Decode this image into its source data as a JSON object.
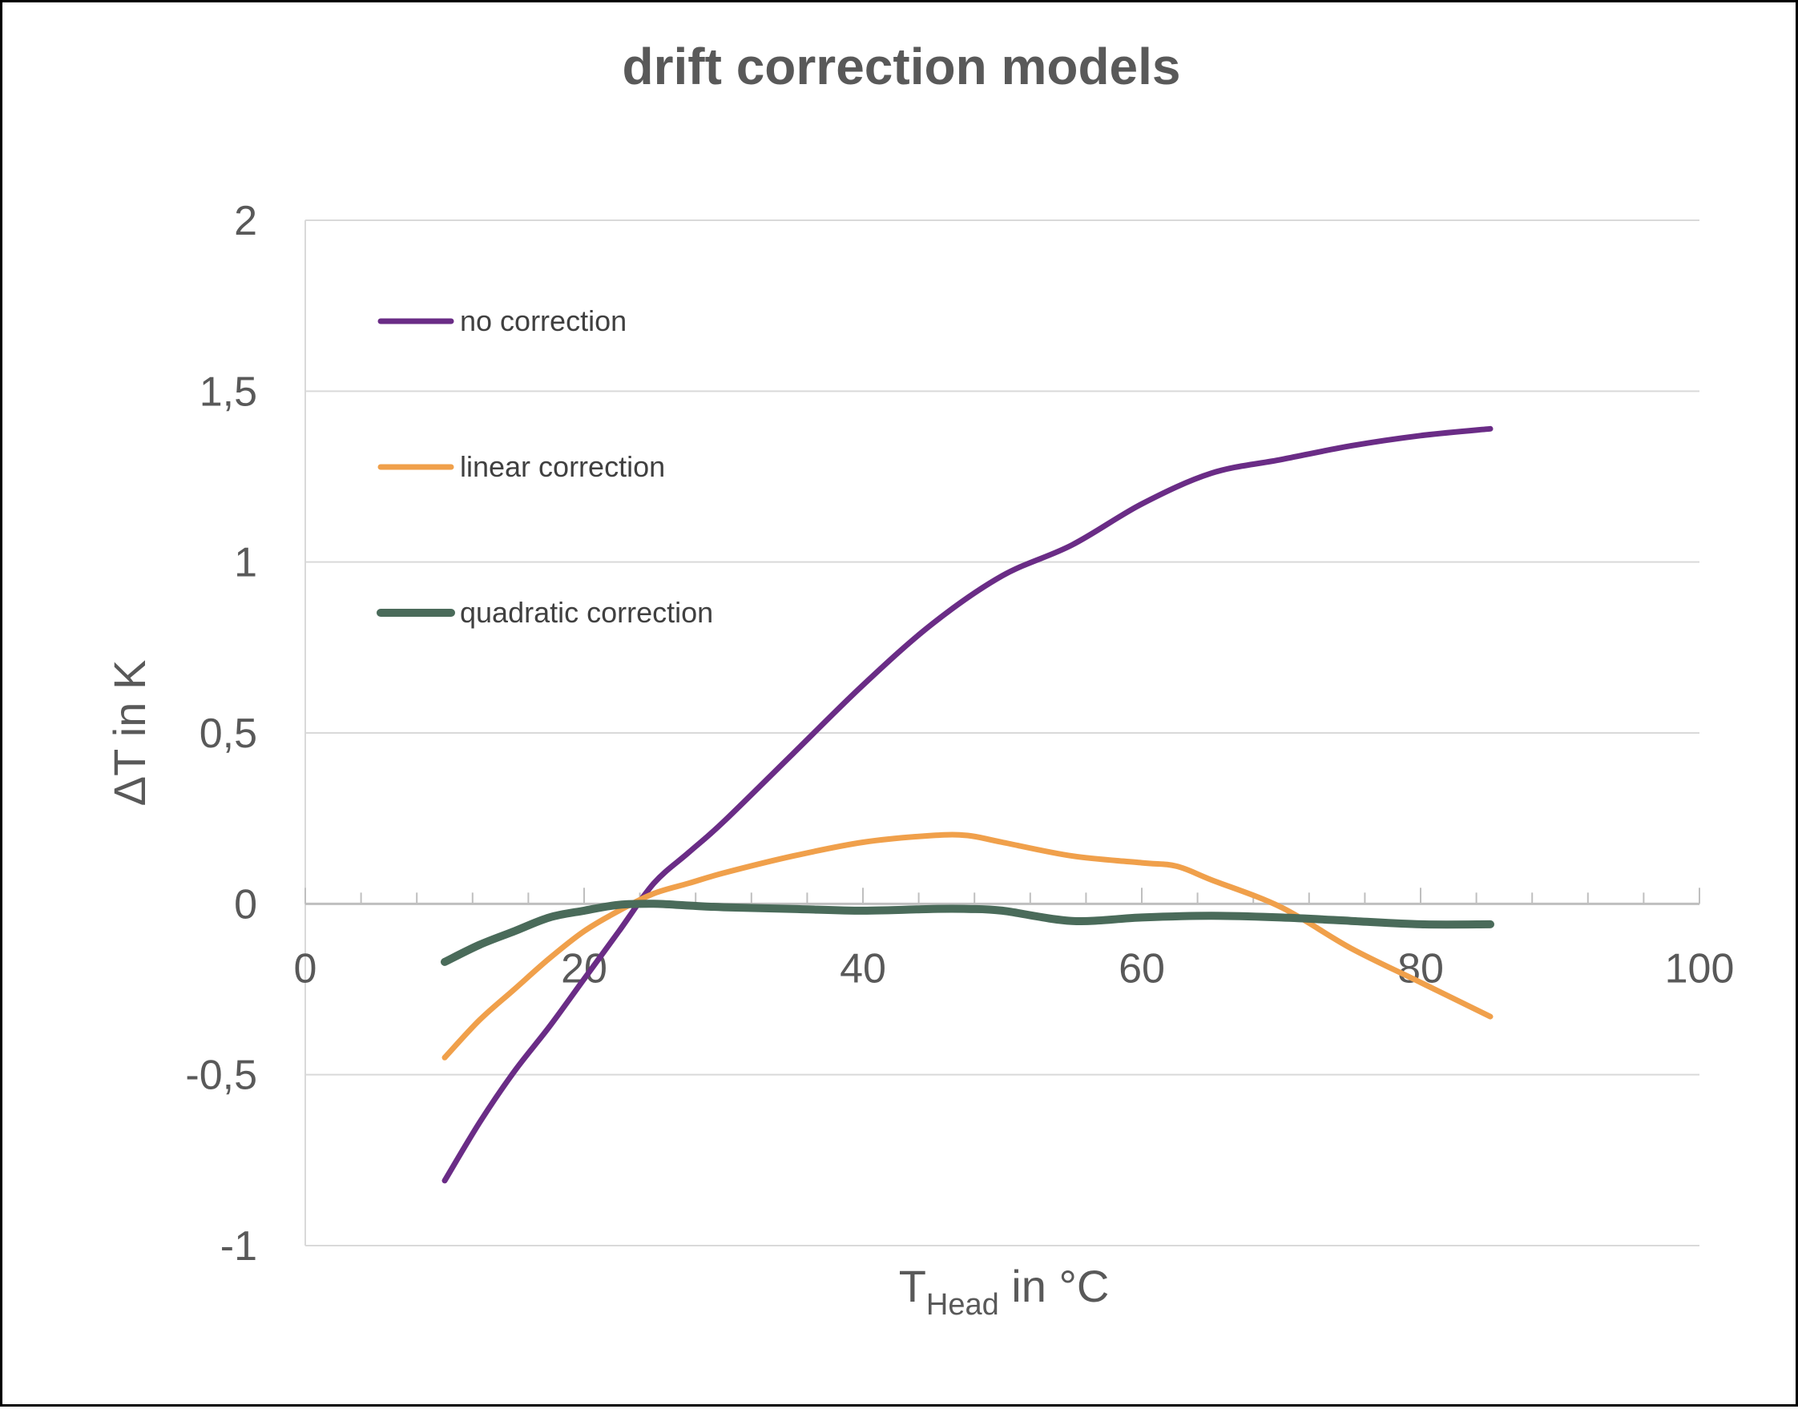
{
  "chart_data": {
    "type": "line",
    "title": "drift correction models",
    "xlabel": {
      "main": "T",
      "subscript": "Head",
      "suffix": " in °C"
    },
    "ylabel": "ΔT in K",
    "xlim": [
      0,
      100
    ],
    "ylim": [
      -1,
      2
    ],
    "x_ticks": [
      0,
      20,
      40,
      60,
      80,
      100
    ],
    "x_tick_labels": [
      "0",
      "20",
      "40",
      "60",
      "80",
      "100"
    ],
    "y_ticks": [
      -1,
      -0.5,
      0,
      0.5,
      1,
      1.5,
      2
    ],
    "y_tick_labels": [
      "-1",
      "-0,5",
      "0",
      "0,5",
      "1",
      "1,5",
      "2"
    ],
    "x_minor_tick_step": 4,
    "grid": "horizontal",
    "legend_position": "top-left",
    "series": [
      {
        "name": "no correction",
        "color": "#6a2c86",
        "x": [
          10,
          12.5,
          15,
          17.5,
          20,
          22.5,
          25,
          27.5,
          30,
          35,
          40,
          45,
          50,
          55,
          60,
          65,
          70,
          75,
          80,
          85
        ],
        "y": [
          -0.81,
          -0.64,
          -0.49,
          -0.36,
          -0.22,
          -0.08,
          0.06,
          0.15,
          0.24,
          0.44,
          0.64,
          0.82,
          0.96,
          1.05,
          1.17,
          1.26,
          1.3,
          1.34,
          1.37,
          1.39
        ]
      },
      {
        "name": "linear correction",
        "color": "#f0a04b",
        "x": [
          10,
          12.5,
          15,
          17.5,
          20,
          22.5,
          25,
          27.5,
          30,
          35,
          40,
          45,
          47.5,
          50,
          55,
          60,
          62.5,
          65,
          70,
          75,
          80,
          85
        ],
        "y": [
          -0.45,
          -0.34,
          -0.25,
          -0.16,
          -0.08,
          -0.02,
          0.03,
          0.06,
          0.09,
          0.14,
          0.18,
          0.2,
          0.2,
          0.18,
          0.14,
          0.12,
          0.11,
          0.07,
          -0.01,
          -0.13,
          -0.23,
          -0.33
        ]
      },
      {
        "name": "quadratic correction",
        "color": "#4a6b5a",
        "x": [
          10,
          12.5,
          15,
          17.5,
          20,
          22.5,
          25,
          27.5,
          30,
          35,
          40,
          45,
          47.5,
          50,
          55,
          60,
          65,
          70,
          75,
          80,
          85
        ],
        "y": [
          -0.17,
          -0.12,
          -0.08,
          -0.04,
          -0.02,
          -0.003,
          0,
          -0.005,
          -0.01,
          -0.015,
          -0.02,
          -0.015,
          -0.015,
          -0.02,
          -0.05,
          -0.04,
          -0.035,
          -0.04,
          -0.05,
          -0.06,
          -0.06
        ]
      }
    ]
  }
}
